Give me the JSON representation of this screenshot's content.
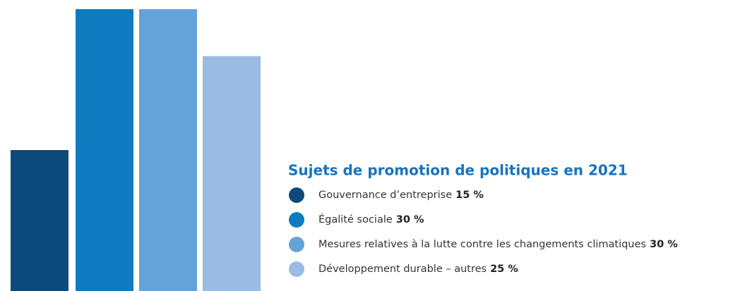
{
  "chart_data": {
    "type": "bar",
    "title": "Sujets de promotion de politiques en 2021",
    "categories": [
      "Gouvernance d’entreprise",
      "Égalité sociale",
      "Mesures relatives à la lutte contre les changements climatiques",
      "Développement durable – autres"
    ],
    "values": [
      15,
      30,
      30,
      25
    ],
    "value_labels": [
      "15 %",
      "30 %",
      "30 %",
      "25 %"
    ],
    "colors": [
      "#0b4a7a",
      "#0e7bc1",
      "#64a3d8",
      "#9abbe3"
    ]
  }
}
